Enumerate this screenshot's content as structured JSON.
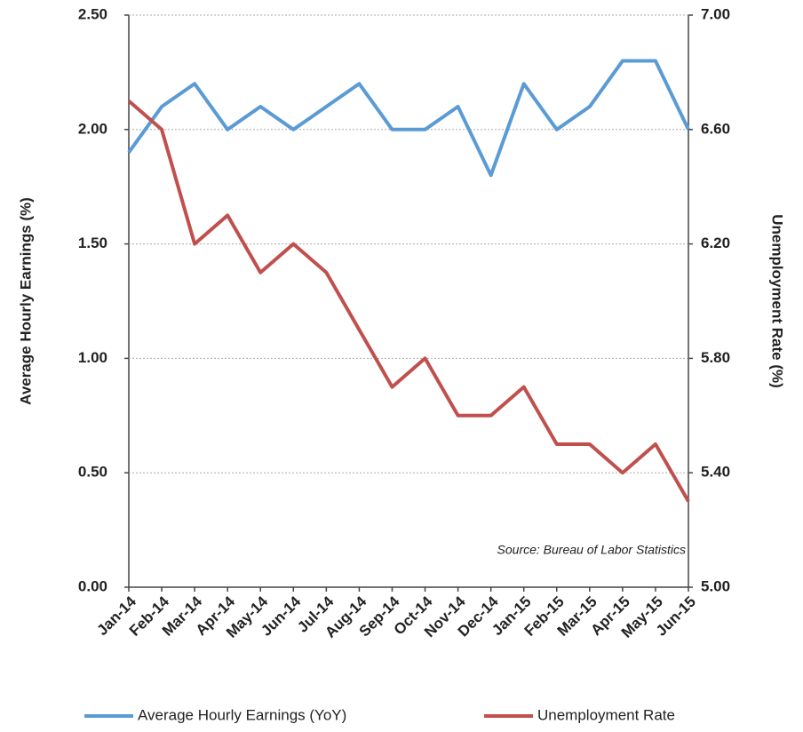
{
  "chart_data": {
    "type": "line",
    "categories": [
      "Jan-14",
      "Feb-14",
      "Mar-14",
      "Apr-14",
      "May-14",
      "Jun-14",
      "Jul-14",
      "Aug-14",
      "Sep-14",
      "Oct-14",
      "Nov-14",
      "Dec-14",
      "Jan-15",
      "Feb-15",
      "Mar-15",
      "Apr-15",
      "May-15",
      "Jun-15"
    ],
    "series": [
      {
        "name": "Average Hourly Earnings (YoY)",
        "color": "#5b9bd5",
        "values": [
          1.9,
          2.1,
          2.2,
          2.0,
          2.1,
          2.0,
          2.1,
          2.2,
          2.0,
          2.0,
          2.1,
          1.8,
          2.2,
          2.0,
          2.1,
          2.3,
          2.3,
          2.0
        ]
      },
      {
        "name": "Unemployment Rate",
        "color": "#c0504d",
        "axis": "y2",
        "values": [
          6.7,
          6.6,
          6.2,
          6.3,
          6.1,
          6.2,
          6.1,
          5.9,
          5.7,
          5.8,
          5.6,
          5.6,
          5.7,
          5.5,
          5.5,
          5.4,
          5.5,
          5.3
        ]
      }
    ],
    "ylabel": "Average Hourly Earnings (%)",
    "y2label": "Unemployment Rate (%)",
    "ylim": [
      0,
      2.5
    ],
    "yticks": [
      {
        "value": 0,
        "label": "0.00"
      },
      {
        "value": 0.5,
        "label": "0.50"
      },
      {
        "value": 1,
        "label": "1.00"
      },
      {
        "value": 1.5,
        "label": "1.50"
      },
      {
        "value": 2,
        "label": "2.00"
      },
      {
        "value": 2.5,
        "label": "2.50"
      }
    ],
    "y2lim": [
      5,
      7
    ],
    "y2ticks": [
      {
        "value": 5,
        "label": "5.00"
      },
      {
        "value": 5.4,
        "label": "5.40"
      },
      {
        "value": 5.8,
        "label": "5.80"
      },
      {
        "value": 6.2,
        "label": "6.20"
      },
      {
        "value": 6.6,
        "label": "6.60"
      },
      {
        "value": 7,
        "label": "7.00"
      }
    ],
    "annotation": "Source: Bureau of Labor Statistics",
    "grid": true,
    "legend": "bottom"
  }
}
